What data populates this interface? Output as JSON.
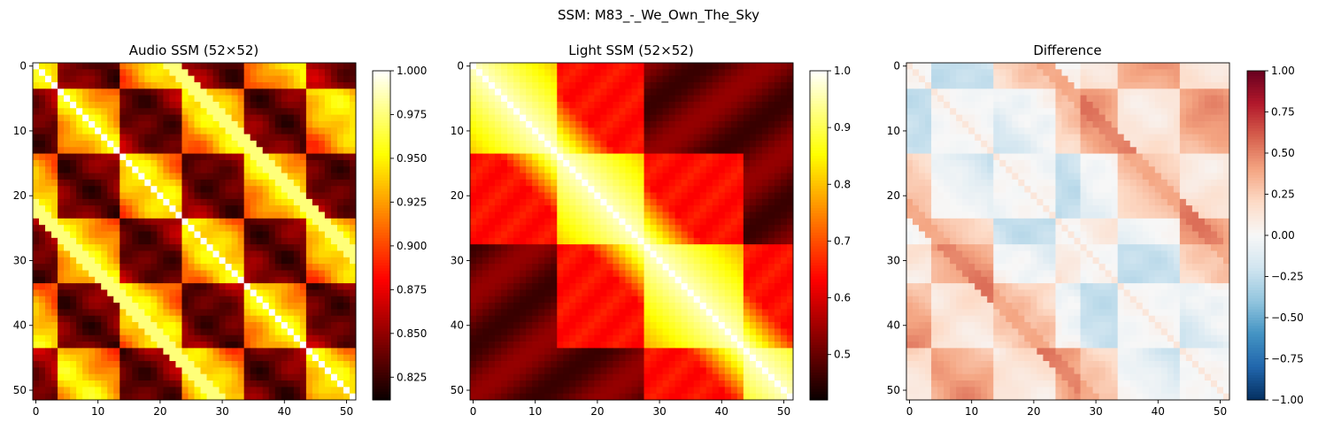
{
  "suptitle": "SSM: M83_-_We_Own_The_Sky",
  "chart_data": [
    {
      "type": "heatmap",
      "title": "Audio SSM (52×52)",
      "size": 52,
      "colormap": "hot",
      "xticks": [
        0,
        10,
        20,
        30,
        40,
        50
      ],
      "yticks": [
        0,
        10,
        20,
        30,
        40,
        50
      ],
      "colorbar": {
        "min": 0.812,
        "max": 1.0,
        "ticks": [
          "1.000",
          "0.975",
          "0.950",
          "0.925",
          "0.900",
          "0.875",
          "0.850",
          "0.825"
        ]
      },
      "block_segments": [
        [
          0,
          3
        ],
        [
          4,
          13
        ],
        [
          14,
          23
        ],
        [
          24,
          33
        ],
        [
          34,
          43
        ],
        [
          44,
          51
        ]
      ],
      "diagonal_offsets": [
        0,
        21,
        22,
        23
      ]
    },
    {
      "type": "heatmap",
      "title": "Light SSM (52×52)",
      "size": 52,
      "colormap": "hot",
      "xticks": [
        0,
        10,
        20,
        30,
        40,
        50
      ],
      "yticks": [
        0,
        10,
        20,
        30,
        40,
        50
      ],
      "colorbar": {
        "min": 0.42,
        "max": 1.0,
        "ticks": [
          "1.0",
          "0.9",
          "0.8",
          "0.7",
          "0.6",
          "0.5"
        ]
      },
      "block_segments": [
        [
          0,
          13
        ],
        [
          14,
          27
        ],
        [
          28,
          43
        ],
        [
          44,
          51
        ]
      ]
    },
    {
      "type": "heatmap",
      "title": "Difference",
      "size": 52,
      "colormap": "RdBu_r",
      "xticks": [
        0,
        10,
        20,
        30,
        40,
        50
      ],
      "yticks": [
        0,
        10,
        20,
        30,
        40,
        50
      ],
      "colorbar": {
        "min": -1.0,
        "max": 1.0,
        "ticks": [
          "1.00",
          "0.75",
          "0.50",
          "0.25",
          "0.00",
          "−0.25",
          "−0.50",
          "−0.75",
          "−1.00"
        ]
      }
    }
  ]
}
